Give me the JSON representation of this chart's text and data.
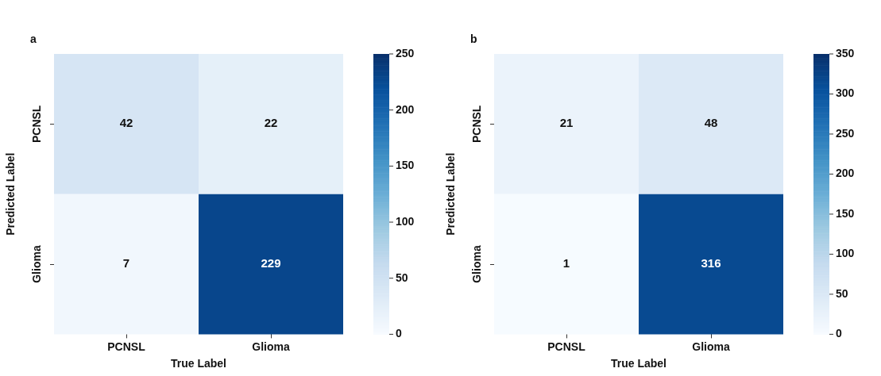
{
  "chart_data": [
    {
      "type": "heatmap",
      "title": "a",
      "xlabel": "True Label",
      "ylabel": "Predicted Label",
      "categories": [
        "PCNSL",
        "Glioma"
      ],
      "y_categories": [
        "PCNSL",
        "Glioma"
      ],
      "cells": [
        [
          42,
          22
        ],
        [
          7,
          229
        ]
      ],
      "clim": [
        0,
        250
      ],
      "cticks": [
        0,
        50,
        100,
        150,
        200,
        250
      ],
      "data_labels": true
    },
    {
      "type": "heatmap",
      "title": "b",
      "xlabel": "True Label",
      "ylabel": "Predicted Label",
      "categories": [
        "PCNSL",
        "Glioma"
      ],
      "y_categories": [
        "PCNSL",
        "Glioma"
      ],
      "cells": [
        [
          21,
          48
        ],
        [
          1,
          316
        ]
      ],
      "clim": [
        0,
        350
      ],
      "cticks": [
        0,
        50,
        100,
        150,
        200,
        250,
        300,
        350
      ],
      "data_labels": true
    }
  ]
}
